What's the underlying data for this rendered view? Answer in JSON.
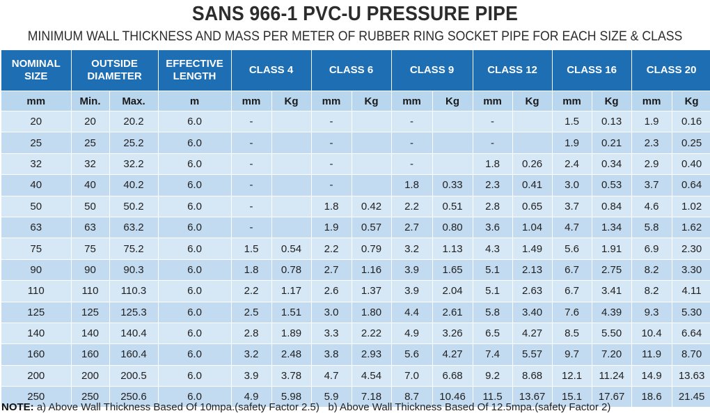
{
  "title": "SANS 966-1 PVC-U PRESSURE PIPE",
  "subtitle": "MINIMUM WALL THICKNESS AND MASS PER METER OF RUBBER RING SOCKET PIPE FOR EACH SIZE & CLASS",
  "headers": {
    "nominal": [
      "NOMINAL",
      "SIZE"
    ],
    "outside": [
      "OUTSIDE",
      "DIAMETER"
    ],
    "effective": [
      "EFFECTIVE",
      "LENGTH"
    ],
    "class4": "CLASS 4",
    "class6": "CLASS 6",
    "class9": "CLASS 9",
    "class12": "CLASS 12",
    "class16": "CLASS 16",
    "class20": "CLASS 20"
  },
  "units": [
    "mm",
    "Min.",
    "Max.",
    "m",
    "mm",
    "Kg",
    "mm",
    "Kg",
    "mm",
    "Kg",
    "mm",
    "Kg",
    "mm",
    "Kg",
    "mm",
    "Kg"
  ],
  "rows": [
    [
      "20",
      "20",
      "20.2",
      "6.0",
      "-",
      "",
      "-",
      "",
      "-",
      "",
      "-",
      "",
      "1.5",
      "0.13",
      "1.9",
      "0.16"
    ],
    [
      "25",
      "25",
      "25.2",
      "6.0",
      "-",
      "",
      "-",
      "",
      "-",
      "",
      "-",
      "",
      "1.9",
      "0.21",
      "2.3",
      "0.25"
    ],
    [
      "32",
      "32",
      "32.2",
      "6.0",
      "-",
      "",
      "-",
      "",
      "-",
      "",
      "1.8",
      "0.26",
      "2.4",
      "0.34",
      "2.9",
      "0.40"
    ],
    [
      "40",
      "40",
      "40.2",
      "6.0",
      "-",
      "",
      "-",
      "",
      "1.8",
      "0.33",
      "2.3",
      "0.41",
      "3.0",
      "0.53",
      "3.7",
      "0.64"
    ],
    [
      "50",
      "50",
      "50.2",
      "6.0",
      "-",
      "",
      "1.8",
      "0.42",
      "2.2",
      "0.51",
      "2.8",
      "0.65",
      "3.7",
      "0.84",
      "4.6",
      "1.02"
    ],
    [
      "63",
      "63",
      "63.2",
      "6.0",
      "-",
      "",
      "1.9",
      "0.57",
      "2.7",
      "0.80",
      "3.6",
      "1.04",
      "4.7",
      "1.34",
      "5.8",
      "1.62"
    ],
    [
      "75",
      "75",
      "75.2",
      "6.0",
      "1.5",
      "0.54",
      "2.2",
      "0.79",
      "3.2",
      "1.13",
      "4.3",
      "1.49",
      "5.6",
      "1.91",
      "6.9",
      "2.30"
    ],
    [
      "90",
      "90",
      "90.3",
      "6.0",
      "1.8",
      "0.78",
      "2.7",
      "1.16",
      "3.9",
      "1.65",
      "5.1",
      "2.13",
      "6.7",
      "2.75",
      "8.2",
      "3.30"
    ],
    [
      "110",
      "110",
      "110.3",
      "6.0",
      "2.2",
      "1.17",
      "2.6",
      "1.37",
      "3.9",
      "2.04",
      "5.1",
      "2.63",
      "6.7",
      "3.41",
      "8.2",
      "4.11"
    ],
    [
      "125",
      "125",
      "125.3",
      "6.0",
      "2.5",
      "1.51",
      "3.0",
      "1.80",
      "4.4",
      "2.61",
      "5.8",
      "3.40",
      "7.6",
      "4.39",
      "9.3",
      "5.30"
    ],
    [
      "140",
      "140",
      "140.4",
      "6.0",
      "2.8",
      "1.89",
      "3.3",
      "2.22",
      "4.9",
      "3.26",
      "6.5",
      "4.27",
      "8.5",
      "5.50",
      "10.4",
      "6.64"
    ],
    [
      "160",
      "160",
      "160.4",
      "6.0",
      "3.2",
      "2.48",
      "3.8",
      "2.93",
      "5.6",
      "4.27",
      "7.4",
      "5.57",
      "9.7",
      "7.20",
      "11.9",
      "8.70"
    ],
    [
      "200",
      "200",
      "200.5",
      "6.0",
      "3.9",
      "3.78",
      "4.7",
      "4.54",
      "7.0",
      "6.68",
      "9.2",
      "8.68",
      "12.1",
      "11.24",
      "14.9",
      "13.63"
    ],
    [
      "250",
      "250",
      "250.6",
      "6.0",
      "4.9",
      "5.98",
      "5.9",
      "7.18",
      "8.7",
      "10.46",
      "11.5",
      "13.67",
      "15.1",
      "17.67",
      "18.6",
      "21.45"
    ]
  ],
  "note": {
    "label": "NOTE:",
    "a": "a) Above Wall Thickness Based Of 10mpa.(safety Factor 2.5)",
    "b": "b) Above Wall Thickness Based Of 12.5mpa.(safety Factor 2)"
  }
}
